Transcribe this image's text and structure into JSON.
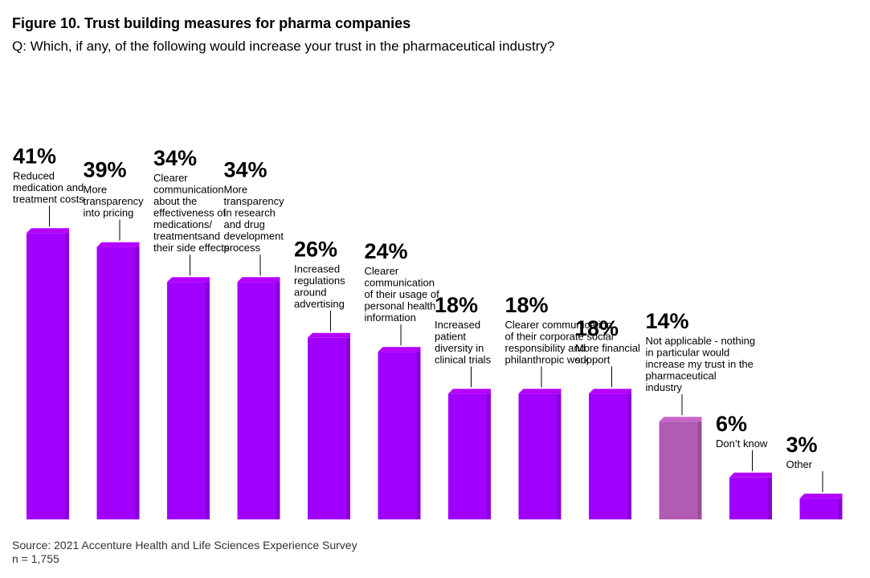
{
  "title": "Figure 10. Trust building measures for pharma companies",
  "subtitle": "Q: Which, if any, of the following would increase your trust in the pharmaceutical industry?",
  "source": "Source: 2021 Accenture Health and Life Sciences Experience Survey",
  "sample": "n = 1,755",
  "colors": {
    "primary": "#A100FF",
    "highlight": "#B25BB3"
  },
  "chart_data": {
    "type": "bar",
    "title": "Figure 10. Trust building measures for pharma companies",
    "categories": [
      "Reduced medication and treatment costs",
      "More transparency into pricing",
      "Clearer communication about the effectiveness of medications/ treatmentsand their side effects",
      "More transparency in research and drug development process",
      "Increased regulations around advertising",
      "Clearer communication of their usage of personal health information",
      "Increased patient diversity in clinical trials",
      "Clearer communication of their corporate social responsibility and philanthropic work",
      "More financial support",
      "Not applicable - nothing in particular would increase my trust in the pharmaceutical industry",
      "Don't know",
      "Other"
    ],
    "values": [
      41,
      39,
      34,
      34,
      26,
      24,
      18,
      18,
      18,
      14,
      6,
      3
    ],
    "labels": [
      "41%",
      "39%",
      "34%",
      "34%",
      "26%",
      "24%",
      "18%",
      "18%",
      "18%",
      "14%",
      "6%",
      "3%"
    ],
    "label_lines": [
      [
        "Reduced",
        "medication and",
        "treatment costs"
      ],
      [
        "More",
        "transparency",
        "into pricing"
      ],
      [
        "Clearer",
        "communication",
        "about the",
        "effectiveness of",
        "medications/",
        "treatmentsand",
        "their side effects"
      ],
      [
        "More",
        "transparency",
        "in research",
        "and drug",
        "development",
        "process"
      ],
      [
        "Increased",
        "regulations",
        "around",
        "advertising"
      ],
      [
        "Clearer",
        "communication",
        "of their usage of",
        "personal health",
        "information"
      ],
      [
        "Increased",
        "patient",
        "diversity in",
        "clinical trials"
      ],
      [
        "Clearer communication",
        "of their corporate social",
        "responsibility and",
        "philanthropic work"
      ],
      [
        "More financial",
        "support"
      ],
      [
        "Not applicable - nothing",
        "in particular would",
        "increase my trust in the",
        "pharmaceutical",
        "industry"
      ],
      [
        "Don’t know"
      ],
      [
        "Other"
      ]
    ],
    "highlight_index": 9,
    "xlabel": "",
    "ylabel": "",
    "unit": "%"
  }
}
